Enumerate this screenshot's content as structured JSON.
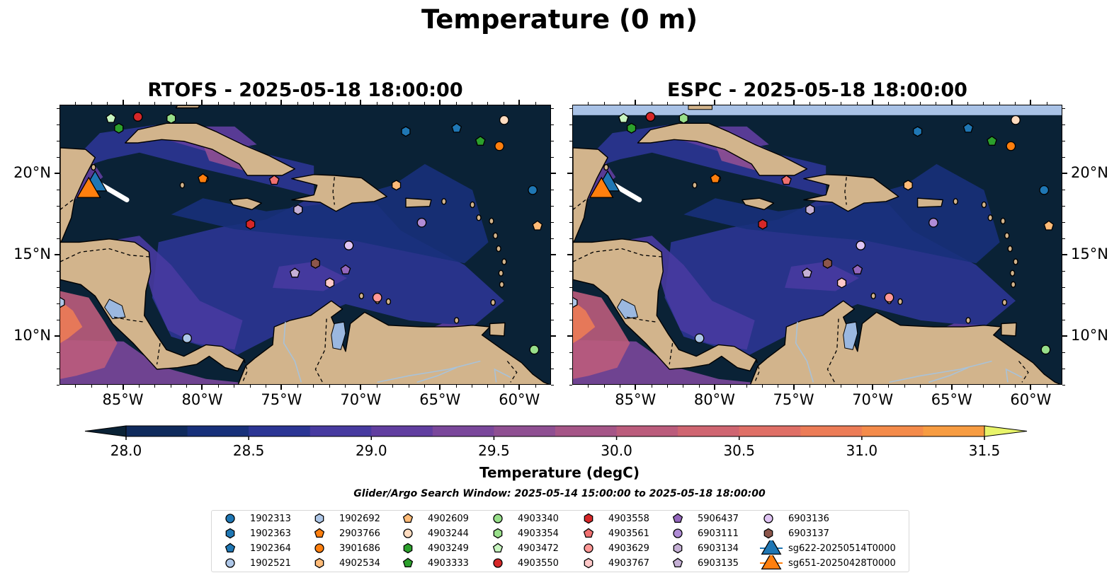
{
  "figure": {
    "suptitle": "Temperature (0 m)",
    "search_window": "Glider/Argo Search Window: 2025-05-14 15:00:00 to 2025-05-18 18:00:00"
  },
  "panels": [
    {
      "title": "RTOFS - 2025-05-18 18:00:00",
      "model": "RTOFS"
    },
    {
      "title": "ESPC - 2025-05-18 18:00:00",
      "model": "ESPC"
    }
  ],
  "axes": {
    "lon_labels": [
      "85°W",
      "80°W",
      "75°W",
      "70°W",
      "65°W",
      "60°W"
    ],
    "lon_values": [
      -85,
      -80,
      -75,
      -70,
      -65,
      -60
    ],
    "lat_labels": [
      "20°N",
      "15°N",
      "10°N"
    ],
    "lat_values": [
      20,
      15,
      10
    ],
    "lon_range": [
      -89,
      -58
    ],
    "lat_range": [
      7,
      24.2
    ]
  },
  "colorbar": {
    "label": "Temperature (degC)",
    "ticks": [
      "28.0",
      "28.5",
      "29.0",
      "29.5",
      "30.0",
      "30.5",
      "31.0",
      "31.5"
    ],
    "tick_values": [
      28.0,
      28.5,
      29.0,
      29.5,
      30.0,
      30.5,
      31.0,
      31.5
    ],
    "range": [
      28.0,
      31.5
    ],
    "step": 0.25,
    "extend": "both",
    "colors": [
      "#0a2236",
      "#0f2a5c",
      "#17307a",
      "#2b3594",
      "#473aa0",
      "#613ea0",
      "#7a479b",
      "#8f4f92",
      "#a55587",
      "#bb5c7c",
      "#cf6571",
      "#df6f66",
      "#ec7c57",
      "#f48b4a",
      "#f79c42",
      "#f8b13d",
      "#f5c844",
      "#f1dd55",
      "#e8f46a"
    ]
  },
  "map_colors": {
    "land": "#d2b48c",
    "ocean_base": "#0a2236",
    "lake": "#9bb8e0",
    "espc_band": "#a9c2e6"
  },
  "legend": [
    {
      "name": "1902313",
      "marker": "circle",
      "color": "#1f77b4",
      "lon": -59.2,
      "lat": 19.0
    },
    {
      "name": "1902363",
      "marker": "hexagon",
      "color": "#1f77b4",
      "lon": -67.2,
      "lat": 22.6
    },
    {
      "name": "1902364",
      "marker": "pentagon",
      "color": "#1f77b4",
      "lon": -64.0,
      "lat": 22.8
    },
    {
      "name": "1902521",
      "marker": "circle",
      "color": "#aec7e8",
      "lon": -81.0,
      "lat": 9.9
    },
    {
      "name": "1902692",
      "marker": "hexagon",
      "color": "#aec7e8",
      "lon": -89.0,
      "lat": 12.1
    },
    {
      "name": "2903766",
      "marker": "pentagon",
      "color": "#ff7f0e",
      "lon": -80.0,
      "lat": 19.7
    },
    {
      "name": "3901686",
      "marker": "circle",
      "color": "#ff7f0e",
      "lon": -61.3,
      "lat": 21.7
    },
    {
      "name": "4902534",
      "marker": "hexagon",
      "color": "#ffbb78",
      "lon": -67.8,
      "lat": 19.3
    },
    {
      "name": "4902609",
      "marker": "pentagon",
      "color": "#ffbb78",
      "lon": -58.9,
      "lat": 16.8
    },
    {
      "name": "4903244",
      "marker": "circle",
      "color": "#ffdcc0",
      "lon": -61.0,
      "lat": 23.3
    },
    {
      "name": "4903249",
      "marker": "hexagon",
      "color": "#2ca02c",
      "lon": -85.3,
      "lat": 22.8
    },
    {
      "name": "4903333",
      "marker": "pentagon",
      "color": "#2ca02c",
      "lon": -62.5,
      "lat": 22.0
    },
    {
      "name": "4903340",
      "marker": "circle",
      "color": "#98df8a",
      "lon": -59.1,
      "lat": 9.2
    },
    {
      "name": "4903354",
      "marker": "hexagon",
      "color": "#98df8a",
      "lon": -82.0,
      "lat": 23.4
    },
    {
      "name": "4903472",
      "marker": "pentagon",
      "color": "#c8f5c0",
      "lon": -85.8,
      "lat": 23.4
    },
    {
      "name": "4903550",
      "marker": "circle",
      "color": "#d62728",
      "lon": -84.1,
      "lat": 23.5
    },
    {
      "name": "4903558",
      "marker": "hexagon",
      "color": "#d62728",
      "lon": -77.0,
      "lat": 16.9
    },
    {
      "name": "4903561",
      "marker": "pentagon",
      "color": "#f07070",
      "lon": -75.5,
      "lat": 19.6
    },
    {
      "name": "4903629",
      "marker": "circle",
      "color": "#ff9896",
      "lon": -69.0,
      "lat": 12.4
    },
    {
      "name": "4903767",
      "marker": "hexagon",
      "color": "#ffc8c8",
      "lon": -72.0,
      "lat": 13.3
    },
    {
      "name": "5906437",
      "marker": "pentagon",
      "color": "#9467bd",
      "lon": -71.0,
      "lat": 14.1
    },
    {
      "name": "6903111",
      "marker": "circle",
      "color": "#b08cd6",
      "lon": -66.2,
      "lat": 17.0
    },
    {
      "name": "6903134",
      "marker": "hexagon",
      "color": "#c5b0d5",
      "lon": -74.0,
      "lat": 17.8
    },
    {
      "name": "6903135",
      "marker": "pentagon",
      "color": "#c5b0d5",
      "lon": -74.2,
      "lat": 13.9
    },
    {
      "name": "6903136",
      "marker": "circle",
      "color": "#e0c4f4",
      "lon": -70.8,
      "lat": 15.6
    },
    {
      "name": "6903137",
      "marker": "hexagon",
      "color": "#8c564b",
      "lon": -72.9,
      "lat": 14.5
    },
    {
      "name": "sg622-20250514T0000",
      "marker": "triangle",
      "color": "#1f77b4",
      "lon": -86.8,
      "lat": 19.5
    },
    {
      "name": "sg651-20250428T0000",
      "marker": "triangle",
      "color": "#ff7f0e",
      "lon": -87.2,
      "lat": 19.1
    }
  ]
}
